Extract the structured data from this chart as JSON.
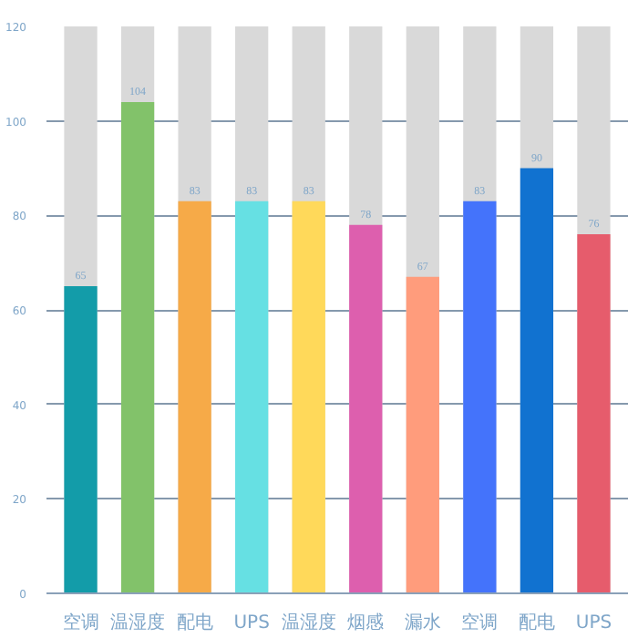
{
  "chart_data": {
    "type": "bar",
    "categories": [
      "空调",
      "温湿度",
      "配电",
      "UPS",
      "温湿度",
      "烟感",
      "漏水",
      "空调",
      "配电",
      "UPS"
    ],
    "values": [
      65,
      104,
      83,
      83,
      83,
      78,
      67,
      83,
      90,
      76
    ],
    "colors": [
      "#139ca9",
      "#82c26a",
      "#f6aa48",
      "#66e0e3",
      "#ffd95a",
      "#dd5fae",
      "#ff9c7c",
      "#4473fb",
      "#1172d0",
      "#e65c6c"
    ],
    "ylim": [
      0,
      120
    ],
    "yticks": [
      0,
      20,
      40,
      60,
      80,
      100,
      120
    ],
    "grid": "y",
    "data_labels": true
  }
}
